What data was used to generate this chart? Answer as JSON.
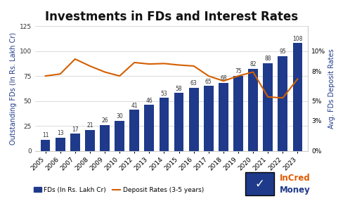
{
  "title": "Investments in FDs and Interest Rates",
  "years": [
    2005,
    2006,
    2007,
    2008,
    2009,
    2010,
    2012,
    2013,
    2014,
    2015,
    2016,
    2017,
    2018,
    2019,
    2020,
    2021,
    2022,
    2023
  ],
  "fd_values": [
    11,
    13,
    17,
    21,
    26,
    30,
    41,
    46,
    53,
    58,
    63,
    65,
    68,
    75,
    82,
    88,
    95,
    108
  ],
  "deposit_rates": [
    7.5,
    7.7,
    9.2,
    8.5,
    7.9,
    7.5,
    8.85,
    8.7,
    8.75,
    8.6,
    8.5,
    7.5,
    7.0,
    7.5,
    7.9,
    5.4,
    5.3,
    7.2
  ],
  "bar_color": "#1f3a8a",
  "line_color": "#d45f00",
  "ylabel_left": "Outstanding FDs (In Rs. Lakh Cr)",
  "ylabel_right": "Avg. FDs Deposit Rates",
  "ylim_left": [
    0,
    125
  ],
  "ylim_right": [
    0,
    12.5
  ],
  "yticks_left": [
    0,
    25,
    50,
    75,
    100,
    125
  ],
  "yticks_right": [
    0,
    3,
    5,
    8,
    10
  ],
  "ytick_labels_right": [
    "0%",
    "3%",
    "5%",
    "8%",
    "10%"
  ],
  "legend_bar_label": "FDs (In Rs. Lakh Cr)",
  "legend_line_label": "Deposit Rates (3-5 years)",
  "background_color": "#ffffff",
  "title_fontsize": 12,
  "axis_label_fontsize": 7,
  "tick_fontsize": 6.5,
  "bar_label_fontsize": 5.5,
  "incred_text_incred": "InCred",
  "incred_text_money": "Money",
  "incred_color_main": "#e05a00",
  "incred_color_box": "#1f3a8a"
}
